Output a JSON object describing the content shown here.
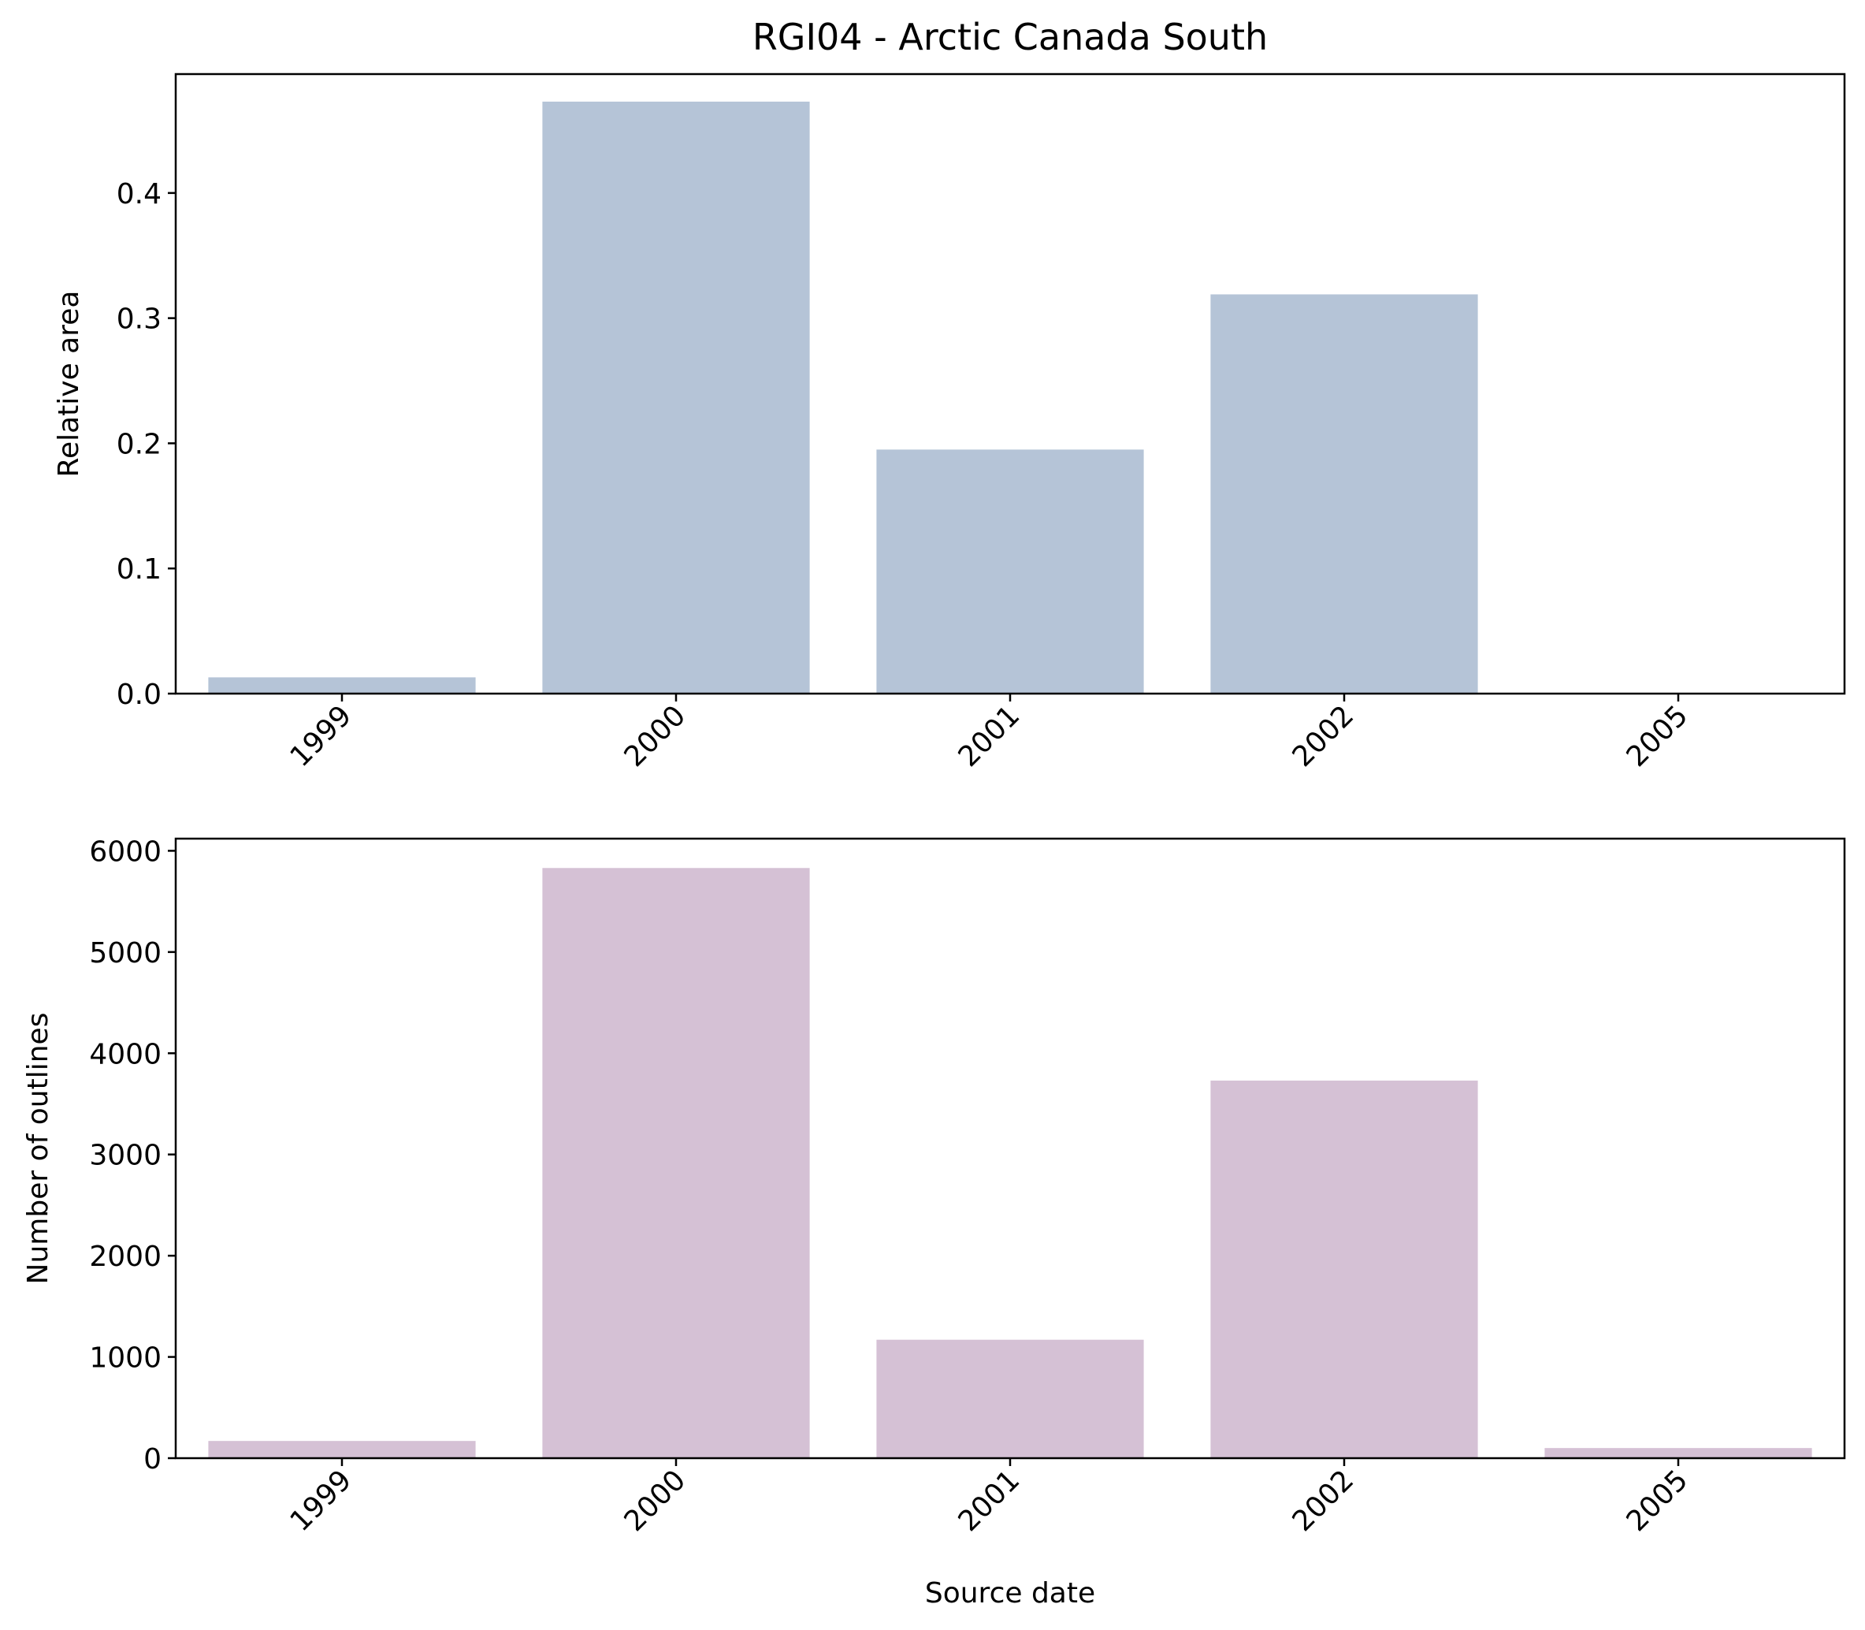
{
  "figure": {
    "title": "RGI04 - Arctic Canada South"
  },
  "chart_data": [
    {
      "type": "bar",
      "title": "RGI04 - Arctic Canada South",
      "xlabel": "",
      "ylabel": "Relative area",
      "categories": [
        "1999",
        "2000",
        "2001",
        "2002",
        "2005"
      ],
      "values": [
        0.013,
        0.473,
        0.195,
        0.319,
        0.0005
      ],
      "ylim": [
        0,
        0.495
      ],
      "yticks": [
        0.0,
        0.1,
        0.2,
        0.3,
        0.4
      ],
      "ytick_labels": [
        "0.0",
        "0.1",
        "0.2",
        "0.3",
        "0.4"
      ],
      "bar_color": "#b5c4d7",
      "grid": false,
      "legend": "none"
    },
    {
      "type": "bar",
      "title": "",
      "xlabel": "Source date",
      "ylabel": "Number of outlines",
      "categories": [
        "1999",
        "2000",
        "2001",
        "2002",
        "2005"
      ],
      "values": [
        170,
        5830,
        1170,
        3730,
        100
      ],
      "ylim": [
        0,
        6120
      ],
      "yticks": [
        0,
        1000,
        2000,
        3000,
        4000,
        5000,
        6000
      ],
      "ytick_labels": [
        "0",
        "1000",
        "2000",
        "3000",
        "4000",
        "5000",
        "6000"
      ],
      "bar_color": "#d5c1d5",
      "grid": false,
      "legend": "none"
    }
  ]
}
